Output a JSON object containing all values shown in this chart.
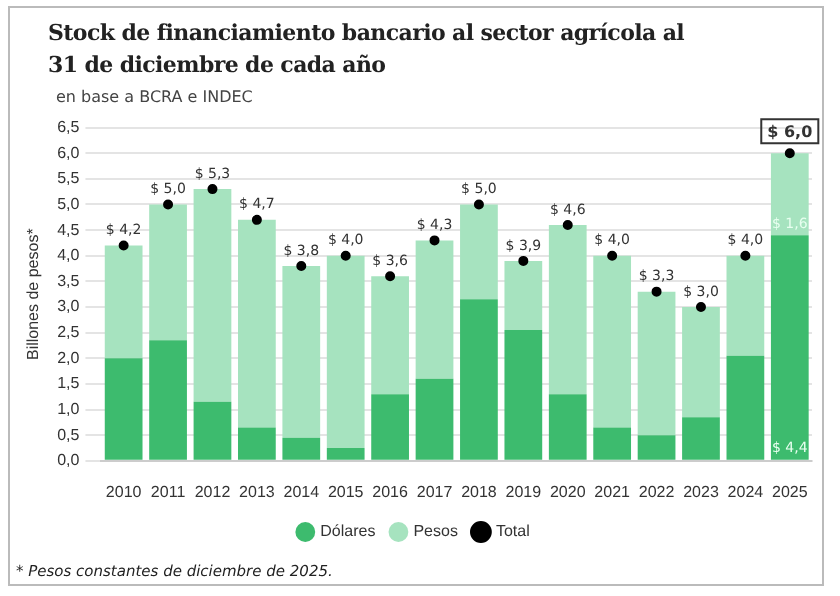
{
  "chart_data": {
    "type": "bar",
    "title": "Stock de financiamiento bancario al sector agrícola al 31 de diciembre de cada año",
    "subtitle": "en base a BCRA e INDEC",
    "ylabel": "Billones de pesos*",
    "annotations": [
      "* Pesos constantes de diciembre de 2025."
    ],
    "categories": [
      "2010",
      "2011",
      "2012",
      "2013",
      "2014",
      "2015",
      "2016",
      "2017",
      "2018",
      "2019",
      "2020",
      "2021",
      "2022",
      "2023",
      "2024",
      "2025"
    ],
    "stacked": true,
    "grid": "y",
    "legend": "bottom",
    "ylim": [
      0,
      6.5
    ],
    "yticks": [
      {
        "value": 0,
        "label": "0,0"
      },
      {
        "value": 0.5,
        "label": "0,5"
      },
      {
        "value": 1,
        "label": "1,0"
      },
      {
        "value": 1.5,
        "label": "1,5"
      },
      {
        "value": 2,
        "label": "2,0"
      },
      {
        "value": 2.5,
        "label": "2,5"
      },
      {
        "value": 3,
        "label": "3,0"
      },
      {
        "value": 3.5,
        "label": "3,5"
      },
      {
        "value": 4,
        "label": "4,0"
      },
      {
        "value": 4.5,
        "label": "4,5"
      },
      {
        "value": 5,
        "label": "5,0"
      },
      {
        "value": 5.5,
        "label": "5,5"
      },
      {
        "value": 6,
        "label": "6,0"
      },
      {
        "value": 6.5,
        "label": "6,5"
      }
    ],
    "series": [
      {
        "name": "Dólares",
        "color": "#3dbb6e",
        "values": [
          2.0,
          2.35,
          1.15,
          0.65,
          0.45,
          0.25,
          1.3,
          1.6,
          3.15,
          2.55,
          1.3,
          0.65,
          0.5,
          0.85,
          2.05,
          4.4
        ],
        "value_labels": [
          null,
          null,
          null,
          null,
          null,
          null,
          null,
          null,
          null,
          null,
          null,
          null,
          null,
          null,
          null,
          "$ 4,4"
        ]
      },
      {
        "name": "Pesos",
        "color": "#a6e3bf",
        "values": [
          2.2,
          2.65,
          4.15,
          4.05,
          3.35,
          3.75,
          2.3,
          2.7,
          1.85,
          1.35,
          3.3,
          3.35,
          2.8,
          2.15,
          1.95,
          1.6
        ],
        "value_labels": [
          null,
          null,
          null,
          null,
          null,
          null,
          null,
          null,
          null,
          null,
          null,
          null,
          null,
          null,
          null,
          "$ 1,6"
        ]
      },
      {
        "name": "Total",
        "type": "scatter",
        "marker": "circle",
        "color": "#000000",
        "values": [
          4.2,
          5.0,
          5.3,
          4.7,
          3.8,
          4.0,
          3.6,
          4.3,
          5.0,
          3.9,
          4.6,
          4.0,
          3.3,
          3.0,
          4.0,
          6.0
        ],
        "value_labels": [
          "$ 4,2",
          "$ 5,0",
          "$ 5,3",
          "$ 4,7",
          "$ 3,8",
          "$ 4,0",
          "$ 3,6",
          "$ 4,3",
          "$ 5,0",
          "$ 3,9",
          "$ 4,6",
          "$ 4,0",
          "$ 3,3",
          "$ 3,0",
          "$ 4,0",
          "$ 6,0"
        ]
      }
    ]
  }
}
